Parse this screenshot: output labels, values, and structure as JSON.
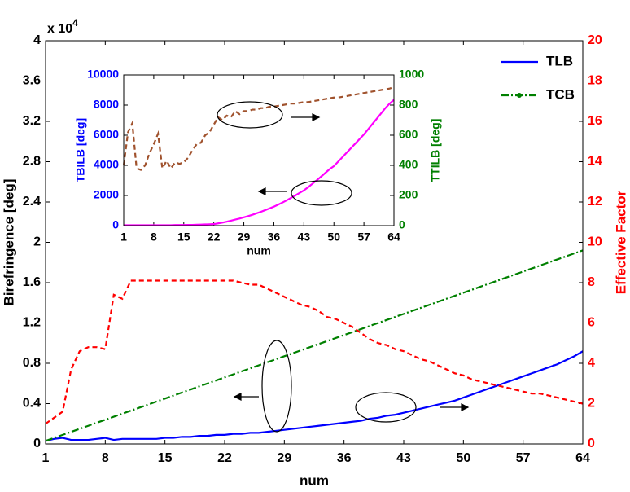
{
  "chart_data": [
    {
      "type": "line",
      "xlabel": "num",
      "ylabel": "Birefringence [deg]",
      "y2label": "Effective Factor",
      "y_multiplier": "x 10",
      "y_multiplier_exp": "4",
      "ycolor": "#000000",
      "y2color": "#ff0000",
      "legend": "upper right",
      "x": [
        1,
        2,
        3,
        4,
        5,
        6,
        7,
        8,
        9,
        10,
        11,
        12,
        13,
        14,
        15,
        16,
        17,
        18,
        19,
        20,
        21,
        22,
        23,
        24,
        25,
        26,
        27,
        28,
        29,
        30,
        31,
        32,
        33,
        34,
        35,
        36,
        37,
        38,
        39,
        40,
        41,
        42,
        43,
        44,
        45,
        46,
        47,
        48,
        49,
        50,
        51,
        52,
        53,
        54,
        55,
        56,
        57,
        58,
        59,
        60,
        61,
        62,
        63,
        64
      ],
      "xlim": [
        1,
        64
      ],
      "xticks": [
        1,
        8,
        15,
        22,
        29,
        36,
        43,
        50,
        57,
        64
      ],
      "ylim": [
        0,
        4
      ],
      "yticks": [
        0,
        0.4,
        0.8,
        1.2,
        1.6,
        2,
        2.4,
        2.8,
        3.2,
        3.6,
        4
      ],
      "y2lim": [
        0,
        20
      ],
      "y2ticks": [
        0,
        2,
        4,
        6,
        8,
        10,
        12,
        14,
        16,
        18,
        20
      ],
      "series": [
        {
          "name": "TLB",
          "color": "#0000ff",
          "linestyle": "solid",
          "values": [
            0.03,
            0.05,
            0.06,
            0.04,
            0.04,
            0.04,
            0.05,
            0.06,
            0.04,
            0.05,
            0.05,
            0.05,
            0.05,
            0.05,
            0.06,
            0.06,
            0.07,
            0.07,
            0.08,
            0.08,
            0.09,
            0.09,
            0.1,
            0.1,
            0.11,
            0.11,
            0.12,
            0.13,
            0.14,
            0.15,
            0.16,
            0.17,
            0.18,
            0.19,
            0.2,
            0.21,
            0.22,
            0.23,
            0.25,
            0.26,
            0.28,
            0.29,
            0.31,
            0.33,
            0.35,
            0.37,
            0.39,
            0.41,
            0.43,
            0.46,
            0.49,
            0.52,
            0.55,
            0.58,
            0.61,
            0.64,
            0.67,
            0.7,
            0.73,
            0.76,
            0.79,
            0.83,
            0.87,
            0.92
          ]
        },
        {
          "name": "TCB",
          "color": "#008000",
          "linestyle": "dashdot",
          "marker": "o",
          "values": [
            0.03,
            0.06,
            0.09,
            0.12,
            0.15,
            0.18,
            0.21,
            0.24,
            0.27,
            0.3,
            0.33,
            0.36,
            0.39,
            0.42,
            0.45,
            0.48,
            0.51,
            0.54,
            0.57,
            0.6,
            0.63,
            0.66,
            0.69,
            0.72,
            0.75,
            0.78,
            0.81,
            0.84,
            0.87,
            0.9,
            0.93,
            0.96,
            0.99,
            1.02,
            1.05,
            1.08,
            1.11,
            1.14,
            1.17,
            1.2,
            1.23,
            1.26,
            1.29,
            1.32,
            1.35,
            1.38,
            1.41,
            1.44,
            1.47,
            1.5,
            1.53,
            1.56,
            1.59,
            1.62,
            1.65,
            1.68,
            1.71,
            1.74,
            1.77,
            1.8,
            1.83,
            1.86,
            1.89,
            1.92
          ]
        },
        {
          "color": "#ff0000",
          "linestyle": "dashed",
          "axis": "y2",
          "values": [
            1,
            1.3,
            1.6,
            3.7,
            4.6,
            4.8,
            4.8,
            4.7,
            7.4,
            7.2,
            8.1,
            8.1,
            8.1,
            8.1,
            8.1,
            8.1,
            8.1,
            8.1,
            8.1,
            8.1,
            8.1,
            8.1,
            8.1,
            8.0,
            7.9,
            7.9,
            7.7,
            7.5,
            7.3,
            7.1,
            6.9,
            6.8,
            6.6,
            6.3,
            6.2,
            6.0,
            5.8,
            5.5,
            5.2,
            5.0,
            4.9,
            4.7,
            4.6,
            4.4,
            4.2,
            4.1,
            3.9,
            3.7,
            3.5,
            3.4,
            3.2,
            3.1,
            3.0,
            2.9,
            2.8,
            2.7,
            2.6,
            2.5,
            2.5,
            2.4,
            2.3,
            2.2,
            2.1,
            2.0
          ]
        }
      ]
    },
    {
      "type": "line",
      "xlabel": "num",
      "ylabel": "TBILB [deg]",
      "y2label": "TTILB [deg]",
      "ycolor": "#0000ff",
      "y2color": "#008000",
      "x": [
        1,
        2,
        3,
        4,
        5,
        6,
        7,
        8,
        9,
        10,
        11,
        12,
        13,
        14,
        15,
        16,
        17,
        18,
        19,
        20,
        21,
        22,
        23,
        24,
        25,
        26,
        27,
        28,
        29,
        30,
        31,
        32,
        33,
        34,
        35,
        36,
        37,
        38,
        39,
        40,
        41,
        42,
        43,
        44,
        45,
        46,
        47,
        48,
        49,
        50,
        51,
        52,
        53,
        54,
        55,
        56,
        57,
        58,
        59,
        60,
        61,
        62,
        63,
        64
      ],
      "xlim": [
        1,
        64
      ],
      "xticks": [
        1,
        8,
        15,
        22,
        29,
        36,
        43,
        50,
        57,
        64
      ],
      "ylim": [
        0,
        10000
      ],
      "yticks": [
        0,
        2000,
        4000,
        6000,
        8000,
        10000
      ],
      "y2lim": [
        0,
        1000
      ],
      "y2ticks": [
        0,
        200,
        400,
        600,
        800,
        1000
      ],
      "series": [
        {
          "color": "#ff00ff",
          "linestyle": "solid",
          "values": [
            30,
            30,
            30,
            30,
            30,
            30,
            30,
            30,
            30,
            30,
            30,
            30,
            40,
            40,
            40,
            50,
            50,
            60,
            70,
            80,
            90,
            100,
            150,
            200,
            260,
            330,
            400,
            470,
            550,
            630,
            720,
            820,
            920,
            1030,
            1140,
            1260,
            1390,
            1530,
            1680,
            1840,
            2000,
            2170,
            2340,
            2550,
            2780,
            3010,
            3250,
            3500,
            3750,
            3950,
            4250,
            4550,
            4850,
            5150,
            5450,
            5750,
            6050,
            6400,
            6750,
            7100,
            7450,
            7800,
            8100,
            8350
          ]
        },
        {
          "color": "#a0522d",
          "linestyle": "dashed",
          "axis": "y2",
          "values": [
            400,
            620,
            680,
            380,
            370,
            400,
            480,
            540,
            610,
            380,
            430,
            380,
            420,
            410,
            420,
            450,
            500,
            540,
            550,
            600,
            620,
            670,
            720,
            700,
            730,
            720,
            760,
            740,
            760,
            760,
            770,
            770,
            780,
            780,
            790,
            790,
            795,
            800,
            805,
            810,
            810,
            815,
            820,
            820,
            825,
            830,
            835,
            840,
            845,
            850,
            850,
            855,
            860,
            865,
            870,
            875,
            880,
            885,
            890,
            895,
            900,
            905,
            910,
            920
          ]
        }
      ]
    }
  ]
}
